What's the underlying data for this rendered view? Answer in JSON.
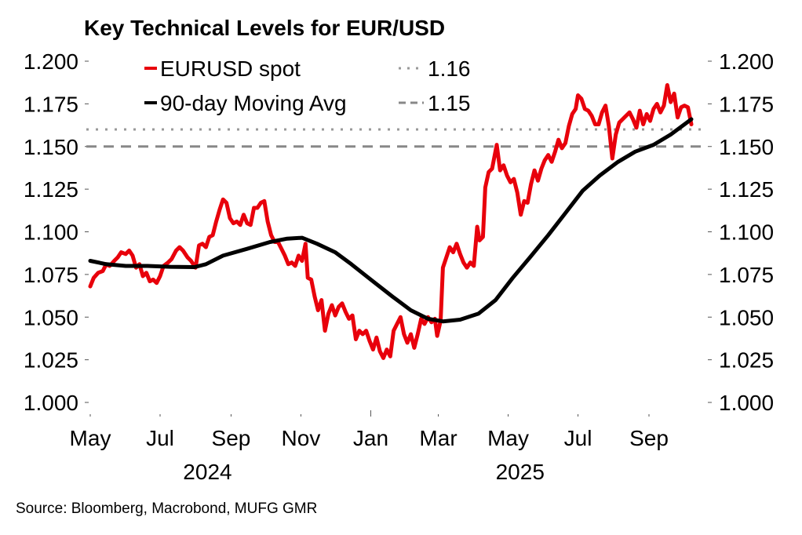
{
  "chart_data": {
    "type": "line",
    "title": "Key Technical Levels for EUR/USD",
    "source": "Source: Bloomberg, Macrobond, MUFG GMR",
    "xlabel": "",
    "ylabel": "",
    "ylim": [
      1.0,
      1.2
    ],
    "y_ticks": [
      "1.000",
      "1.025",
      "1.050",
      "1.075",
      "1.100",
      "1.125",
      "1.150",
      "1.175",
      "1.200"
    ],
    "y_tick_values": [
      1.0,
      1.025,
      1.05,
      1.075,
      1.1,
      1.125,
      1.15,
      1.175,
      1.2
    ],
    "y_axis_both_sides": true,
    "x_range": [
      "2024-05-01",
      "2025-10-20"
    ],
    "x_ticks": [
      {
        "label": "May",
        "date": "2024-05-01"
      },
      {
        "label": "Jul",
        "date": "2024-07-01"
      },
      {
        "label": "Sep",
        "date": "2024-09-01"
      },
      {
        "label": "Nov",
        "date": "2024-11-01"
      },
      {
        "label": "Jan",
        "date": "2025-01-01"
      },
      {
        "label": "Mar",
        "date": "2025-03-01"
      },
      {
        "label": "May",
        "date": "2025-05-01"
      },
      {
        "label": "Jul",
        "date": "2025-07-01"
      },
      {
        "label": "Sep",
        "date": "2025-09-01"
      }
    ],
    "year_labels": [
      {
        "label": "2024",
        "date": "2024-09-01"
      },
      {
        "label": "2025",
        "date": "2025-06-01"
      }
    ],
    "grid": false,
    "legend_position": "top-left",
    "series": [
      {
        "name": "EURUSD spot",
        "color": "#e8000b",
        "style": "solid",
        "points": [
          [
            "2024-05-01",
            1.068
          ],
          [
            "2024-05-04",
            1.073
          ],
          [
            "2024-05-08",
            1.076
          ],
          [
            "2024-05-12",
            1.077
          ],
          [
            "2024-05-15",
            1.081
          ],
          [
            "2024-05-18",
            1.08
          ],
          [
            "2024-05-22",
            1.083
          ],
          [
            "2024-05-25",
            1.085
          ],
          [
            "2024-05-28",
            1.088
          ],
          [
            "2024-06-01",
            1.087
          ],
          [
            "2024-06-04",
            1.089
          ],
          [
            "2024-06-07",
            1.086
          ],
          [
            "2024-06-10",
            1.079
          ],
          [
            "2024-06-13",
            1.081
          ],
          [
            "2024-06-16",
            1.074
          ],
          [
            "2024-06-19",
            1.076
          ],
          [
            "2024-06-22",
            1.071
          ],
          [
            "2024-06-25",
            1.072
          ],
          [
            "2024-06-28",
            1.07
          ],
          [
            "2024-07-01",
            1.074
          ],
          [
            "2024-07-04",
            1.08
          ],
          [
            "2024-07-08",
            1.082
          ],
          [
            "2024-07-11",
            1.084
          ],
          [
            "2024-07-15",
            1.089
          ],
          [
            "2024-07-18",
            1.091
          ],
          [
            "2024-07-21",
            1.089
          ],
          [
            "2024-07-25",
            1.085
          ],
          [
            "2024-07-28",
            1.083
          ],
          [
            "2024-08-01",
            1.079
          ],
          [
            "2024-08-04",
            1.092
          ],
          [
            "2024-08-07",
            1.093
          ],
          [
            "2024-08-10",
            1.091
          ],
          [
            "2024-08-13",
            1.097
          ],
          [
            "2024-08-16",
            1.098
          ],
          [
            "2024-08-19",
            1.106
          ],
          [
            "2024-08-22",
            1.113
          ],
          [
            "2024-08-25",
            1.119
          ],
          [
            "2024-08-28",
            1.117
          ],
          [
            "2024-08-31",
            1.108
          ],
          [
            "2024-09-03",
            1.105
          ],
          [
            "2024-09-06",
            1.106
          ],
          [
            "2024-09-09",
            1.104
          ],
          [
            "2024-09-12",
            1.11
          ],
          [
            "2024-09-15",
            1.105
          ],
          [
            "2024-09-18",
            1.104
          ],
          [
            "2024-09-21",
            1.114
          ],
          [
            "2024-09-24",
            1.114
          ],
          [
            "2024-09-27",
            1.117
          ],
          [
            "2024-09-30",
            1.118
          ],
          [
            "2024-10-03",
            1.106
          ],
          [
            "2024-10-06",
            1.098
          ],
          [
            "2024-10-09",
            1.094
          ],
          [
            "2024-10-12",
            1.094
          ],
          [
            "2024-10-15",
            1.09
          ],
          [
            "2024-10-18",
            1.086
          ],
          [
            "2024-10-21",
            1.081
          ],
          [
            "2024-10-24",
            1.082
          ],
          [
            "2024-10-27",
            1.08
          ],
          [
            "2024-10-30",
            1.086
          ],
          [
            "2024-11-02",
            1.083
          ],
          [
            "2024-11-05",
            1.093
          ],
          [
            "2024-11-07",
            1.073
          ],
          [
            "2024-11-10",
            1.072
          ],
          [
            "2024-11-13",
            1.062
          ],
          [
            "2024-11-16",
            1.054
          ],
          [
            "2024-11-19",
            1.06
          ],
          [
            "2024-11-22",
            1.042
          ],
          [
            "2024-11-25",
            1.052
          ],
          [
            "2024-11-28",
            1.057
          ],
          [
            "2024-12-01",
            1.051
          ],
          [
            "2024-12-04",
            1.056
          ],
          [
            "2024-12-07",
            1.058
          ],
          [
            "2024-12-10",
            1.053
          ],
          [
            "2024-12-13",
            1.049
          ],
          [
            "2024-12-16",
            1.051
          ],
          [
            "2024-12-19",
            1.037
          ],
          [
            "2024-12-22",
            1.042
          ],
          [
            "2024-12-25",
            1.04
          ],
          [
            "2024-12-28",
            1.042
          ],
          [
            "2024-12-31",
            1.036
          ],
          [
            "2025-01-03",
            1.031
          ],
          [
            "2025-01-06",
            1.038
          ],
          [
            "2025-01-09",
            1.03
          ],
          [
            "2025-01-12",
            1.026
          ],
          [
            "2025-01-15",
            1.031
          ],
          [
            "2025-01-18",
            1.027
          ],
          [
            "2025-01-21",
            1.042
          ],
          [
            "2025-01-24",
            1.046
          ],
          [
            "2025-01-27",
            1.05
          ],
          [
            "2025-01-30",
            1.04
          ],
          [
            "2025-02-02",
            1.035
          ],
          [
            "2025-02-05",
            1.04
          ],
          [
            "2025-02-08",
            1.032
          ],
          [
            "2025-02-11",
            1.04
          ],
          [
            "2025-02-14",
            1.049
          ],
          [
            "2025-02-17",
            1.046
          ],
          [
            "2025-02-20",
            1.05
          ],
          [
            "2025-02-23",
            1.047
          ],
          [
            "2025-02-26",
            1.049
          ],
          [
            "2025-02-28",
            1.039
          ],
          [
            "2025-03-03",
            1.048
          ],
          [
            "2025-03-05",
            1.079
          ],
          [
            "2025-03-08",
            1.085
          ],
          [
            "2025-03-11",
            1.091
          ],
          [
            "2025-03-14",
            1.088
          ],
          [
            "2025-03-17",
            1.093
          ],
          [
            "2025-03-20",
            1.087
          ],
          [
            "2025-03-23",
            1.082
          ],
          [
            "2025-03-26",
            1.079
          ],
          [
            "2025-03-29",
            1.082
          ],
          [
            "2025-04-01",
            1.08
          ],
          [
            "2025-04-04",
            1.103
          ],
          [
            "2025-04-06",
            1.095
          ],
          [
            "2025-04-09",
            1.097
          ],
          [
            "2025-04-11",
            1.126
          ],
          [
            "2025-04-14",
            1.135
          ],
          [
            "2025-04-17",
            1.137
          ],
          [
            "2025-04-21",
            1.151
          ],
          [
            "2025-04-24",
            1.136
          ],
          [
            "2025-04-27",
            1.139
          ],
          [
            "2025-04-30",
            1.133
          ],
          [
            "2025-05-03",
            1.129
          ],
          [
            "2025-05-06",
            1.131
          ],
          [
            "2025-05-09",
            1.123
          ],
          [
            "2025-05-12",
            1.11
          ],
          [
            "2025-05-15",
            1.118
          ],
          [
            "2025-05-18",
            1.117
          ],
          [
            "2025-05-21",
            1.128
          ],
          [
            "2025-05-24",
            1.136
          ],
          [
            "2025-05-27",
            1.13
          ],
          [
            "2025-05-30",
            1.137
          ],
          [
            "2025-06-02",
            1.142
          ],
          [
            "2025-06-05",
            1.145
          ],
          [
            "2025-06-08",
            1.141
          ],
          [
            "2025-06-11",
            1.147
          ],
          [
            "2025-06-14",
            1.154
          ],
          [
            "2025-06-17",
            1.149
          ],
          [
            "2025-06-20",
            1.152
          ],
          [
            "2025-06-23",
            1.162
          ],
          [
            "2025-06-26",
            1.169
          ],
          [
            "2025-06-29",
            1.172
          ],
          [
            "2025-07-01",
            1.18
          ],
          [
            "2025-07-04",
            1.178
          ],
          [
            "2025-07-07",
            1.172
          ],
          [
            "2025-07-10",
            1.171
          ],
          [
            "2025-07-13",
            1.168
          ],
          [
            "2025-07-16",
            1.163
          ],
          [
            "2025-07-19",
            1.163
          ],
          [
            "2025-07-22",
            1.17
          ],
          [
            "2025-07-25",
            1.174
          ],
          [
            "2025-07-28",
            1.162
          ],
          [
            "2025-07-31",
            1.143
          ],
          [
            "2025-08-03",
            1.157
          ],
          [
            "2025-08-06",
            1.164
          ],
          [
            "2025-08-09",
            1.166
          ],
          [
            "2025-08-12",
            1.168
          ],
          [
            "2025-08-15",
            1.17
          ],
          [
            "2025-08-18",
            1.166
          ],
          [
            "2025-08-21",
            1.161
          ],
          [
            "2025-08-24",
            1.171
          ],
          [
            "2025-08-27",
            1.163
          ],
          [
            "2025-08-30",
            1.169
          ],
          [
            "2025-09-02",
            1.165
          ],
          [
            "2025-09-05",
            1.172
          ],
          [
            "2025-09-08",
            1.175
          ],
          [
            "2025-09-11",
            1.17
          ],
          [
            "2025-09-14",
            1.174
          ],
          [
            "2025-09-17",
            1.186
          ],
          [
            "2025-09-20",
            1.176
          ],
          [
            "2025-09-23",
            1.181
          ],
          [
            "2025-09-26",
            1.167
          ],
          [
            "2025-09-29",
            1.173
          ],
          [
            "2025-10-02",
            1.174
          ],
          [
            "2025-10-05",
            1.173
          ],
          [
            "2025-10-08",
            1.163
          ]
        ]
      },
      {
        "name": "90-day Moving Avg",
        "color": "#000000",
        "style": "solid",
        "points": [
          [
            "2024-05-01",
            1.083
          ],
          [
            "2024-05-15",
            1.081
          ],
          [
            "2024-06-01",
            1.08
          ],
          [
            "2024-06-20",
            1.08
          ],
          [
            "2024-07-10",
            1.0795
          ],
          [
            "2024-07-31",
            1.0793
          ],
          [
            "2024-08-10",
            1.081
          ],
          [
            "2024-08-25",
            1.086
          ],
          [
            "2024-09-15",
            1.09
          ],
          [
            "2024-10-05",
            1.094
          ],
          [
            "2024-10-20",
            1.096
          ],
          [
            "2024-11-02",
            1.0965
          ],
          [
            "2024-11-15",
            1.093
          ],
          [
            "2024-12-01",
            1.088
          ],
          [
            "2024-12-15",
            1.081
          ],
          [
            "2025-01-01",
            1.072
          ],
          [
            "2025-01-20",
            1.062
          ],
          [
            "2025-02-05",
            1.054
          ],
          [
            "2025-02-20",
            1.049
          ],
          [
            "2025-03-05",
            1.0475
          ],
          [
            "2025-03-20",
            1.0485
          ],
          [
            "2025-04-05",
            1.052
          ],
          [
            "2025-04-20",
            1.06
          ],
          [
            "2025-05-05",
            1.073
          ],
          [
            "2025-05-20",
            1.085
          ],
          [
            "2025-06-05",
            1.098
          ],
          [
            "2025-06-20",
            1.111
          ],
          [
            "2025-07-05",
            1.124
          ],
          [
            "2025-07-20",
            1.133
          ],
          [
            "2025-08-05",
            1.141
          ],
          [
            "2025-08-20",
            1.147
          ],
          [
            "2025-09-05",
            1.151
          ],
          [
            "2025-09-20",
            1.157
          ],
          [
            "2025-10-08",
            1.166
          ]
        ]
      },
      {
        "name": "1.16",
        "color": "#999999",
        "style": "dotted",
        "constant": 1.16
      },
      {
        "name": "1.15",
        "color": "#888888",
        "style": "dashed",
        "constant": 1.15
      }
    ]
  }
}
